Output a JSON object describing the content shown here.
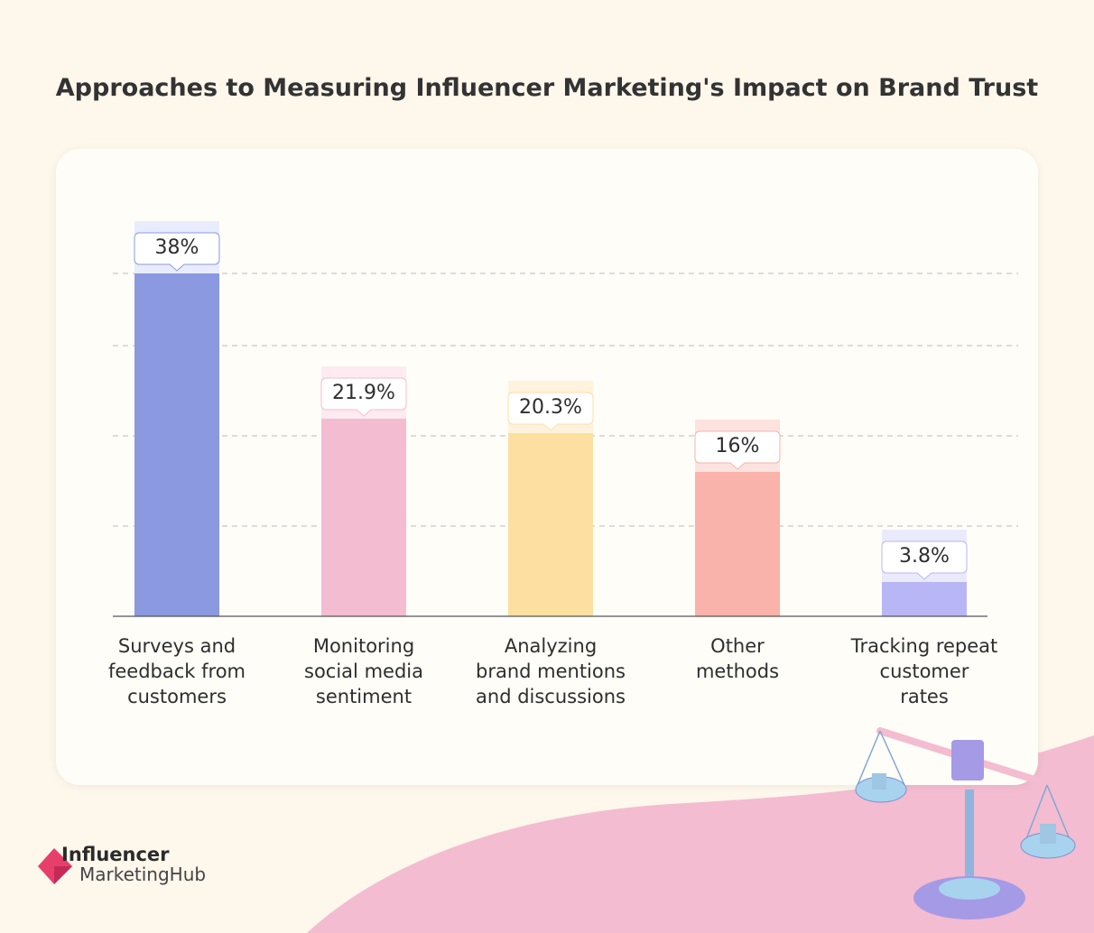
{
  "title": "Approaches to Measuring Influencer Marketing's Impact on Brand Trust",
  "chart_data": {
    "type": "bar",
    "title": "Approaches to Measuring Influencer Marketing's Impact on Brand Trust",
    "categories": [
      "Surveys and feedback from customers",
      "Monitoring social media sentiment",
      "Analyzing brand mentions and discussions",
      "Other methods",
      "Tracking repeat customer rates"
    ],
    "category_lines": [
      [
        "Surveys and",
        "feedback from",
        "customers"
      ],
      [
        "Monitoring",
        "social media",
        "sentiment"
      ],
      [
        "Analyzing",
        "brand mentions",
        "and discussions"
      ],
      [
        "Other",
        "methods"
      ],
      [
        "Tracking repeat",
        "customer",
        "rates"
      ]
    ],
    "values": [
      38,
      21.9,
      20.3,
      16,
      3.8
    ],
    "data_labels": [
      "38%",
      "21.9%",
      "20.3%",
      "16%",
      "3.8%"
    ],
    "colors": [
      "#8a99e0",
      "#f4bcd0",
      "#fddfa1",
      "#f9b3ab",
      "#b9b6f5"
    ],
    "highlight_colors": [
      "#e9ecfd",
      "#fdebf1",
      "#fff3de",
      "#fde3df",
      "#ebeafd"
    ],
    "xlabel": "",
    "ylabel": "",
    "ylim": [
      0,
      40
    ],
    "grid": true,
    "legend": "none"
  },
  "brand": {
    "line1": "Influencer",
    "line2": "MarketingHub",
    "accent": "#e83e6c"
  }
}
